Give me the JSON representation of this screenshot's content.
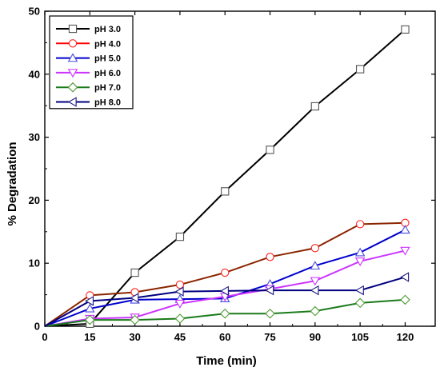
{
  "chart_data": {
    "type": "line",
    "xlabel": "Time (min)",
    "ylabel": "% Degradation",
    "xlim": [
      0,
      130
    ],
    "ylim": [
      0,
      50
    ],
    "x_ticks": [
      0,
      15,
      30,
      45,
      60,
      75,
      90,
      105,
      120
    ],
    "y_ticks": [
      0,
      10,
      20,
      30,
      40,
      50
    ],
    "x": [
      0,
      15,
      30,
      45,
      60,
      75,
      90,
      105,
      120
    ],
    "grid": false,
    "legend_position": "top-left",
    "series": [
      {
        "name": "pH 3.0",
        "line_color": "#000000",
        "marker": "square",
        "marker_color": "#555555",
        "values": [
          0,
          0.4,
          8.5,
          14.2,
          21.4,
          28.0,
          34.9,
          40.8,
          47.1
        ]
      },
      {
        "name": "pH 4.0",
        "line_color": "#8b2500",
        "legend_line_color": "#ff0000",
        "marker": "circle",
        "marker_color": "#ff2020",
        "values": [
          0,
          4.9,
          5.4,
          6.6,
          8.5,
          11.0,
          12.4,
          16.2,
          16.4
        ]
      },
      {
        "name": "pH 5.0",
        "line_color": "#0000cd",
        "marker": "triangle-up",
        "marker_color": "#4a4ae0",
        "values": [
          0,
          2.8,
          4.2,
          4.3,
          4.4,
          6.7,
          9.6,
          11.7,
          15.3
        ]
      },
      {
        "name": "pH 6.0",
        "line_color": "#cc33ff",
        "marker": "triangle-down",
        "marker_color": "#cc33ff",
        "values": [
          0,
          1.2,
          1.4,
          3.6,
          4.7,
          5.9,
          7.2,
          10.3,
          12.0
        ]
      },
      {
        "name": "pH 7.0",
        "line_color": "#1a7a1a",
        "marker": "diamond",
        "marker_color": "#4c9a30",
        "values": [
          0,
          1.0,
          1.0,
          1.2,
          2.0,
          2.0,
          2.4,
          3.7,
          4.2
        ]
      },
      {
        "name": "pH 8.0",
        "line_color": "#000080",
        "marker": "triangle-left",
        "marker_color": "#1a1a80",
        "values": [
          0,
          4.0,
          4.5,
          5.5,
          5.6,
          5.7,
          5.7,
          5.7,
          7.8
        ]
      }
    ]
  }
}
